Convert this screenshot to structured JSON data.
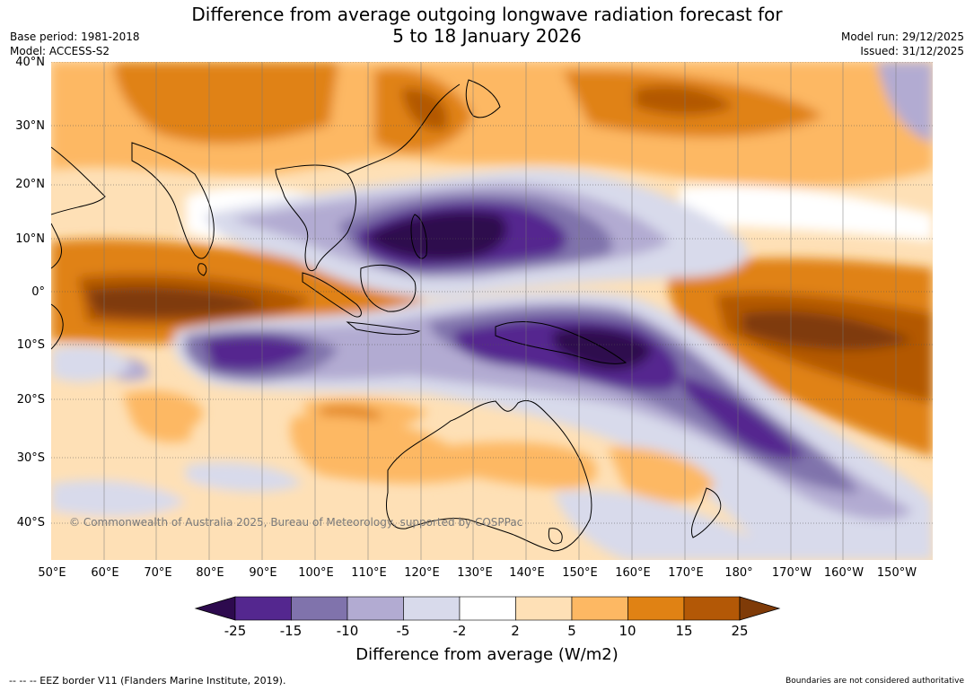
{
  "title": {
    "line1": "Difference from average outgoing longwave radiation forecast for",
    "line2": "5 to 18 January 2026"
  },
  "meta": {
    "base_period": "Base period: 1981-2018",
    "model": "Model: ACCESS-S2",
    "model_run": "Model run: 29/12/2025",
    "issued": "Issued: 31/12/2025"
  },
  "map": {
    "lat_labels": [
      "40°N",
      "30°N",
      "20°N",
      "10°N",
      "0°",
      "10°S",
      "20°S",
      "30°S",
      "40°S"
    ],
    "lon_labels": [
      "50°E",
      "60°E",
      "70°E",
      "80°E",
      "90°E",
      "100°E",
      "110°E",
      "120°E",
      "130°E",
      "140°E",
      "150°E",
      "160°E",
      "170°E",
      "180°",
      "170°W",
      "160°W",
      "150°W"
    ],
    "copyright": "© Commonwealth of Australia 2025, Bureau of Meteorology, supported by COSPPac"
  },
  "colorbar": {
    "ticks": [
      "-25",
      "-15",
      "-10",
      "-5",
      "-2",
      "2",
      "5",
      "10",
      "15",
      "25"
    ],
    "colors": [
      "#2d0a4e",
      "#54278f",
      "#8073ac",
      "#b2abd2",
      "#d8daeb",
      "#ffffff",
      "#fee0b6",
      "#fdb863",
      "#e08214",
      "#b35806",
      "#7f3b08"
    ],
    "title": "Difference from average (W/m2)"
  },
  "footer": {
    "eez": "--  --  -- EEZ border V11 (Flanders Marine Institute, 2019).",
    "disclaimer": "Boundaries are not considered authoritative"
  }
}
